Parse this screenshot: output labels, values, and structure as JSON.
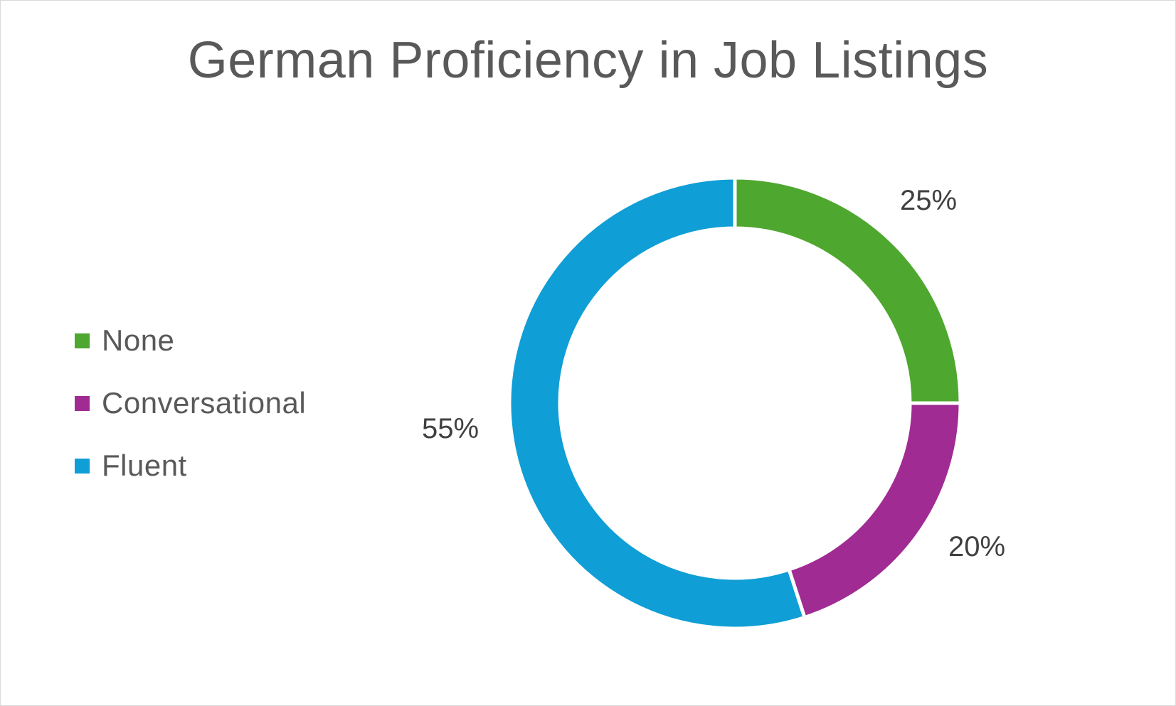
{
  "chart_data": {
    "type": "pie",
    "variant": "doughnut",
    "title": "German Proficiency in Job Listings",
    "categories": [
      "None",
      "Conversational",
      "Fluent"
    ],
    "values": [
      25,
      20,
      55
    ],
    "data_labels": [
      "25%",
      "20%",
      "55%"
    ],
    "colors": [
      "#4ea72e",
      "#a02b93",
      "#0f9ed5"
    ],
    "legend_position": "left",
    "start_angle_deg": 0,
    "direction": "clockwise"
  }
}
